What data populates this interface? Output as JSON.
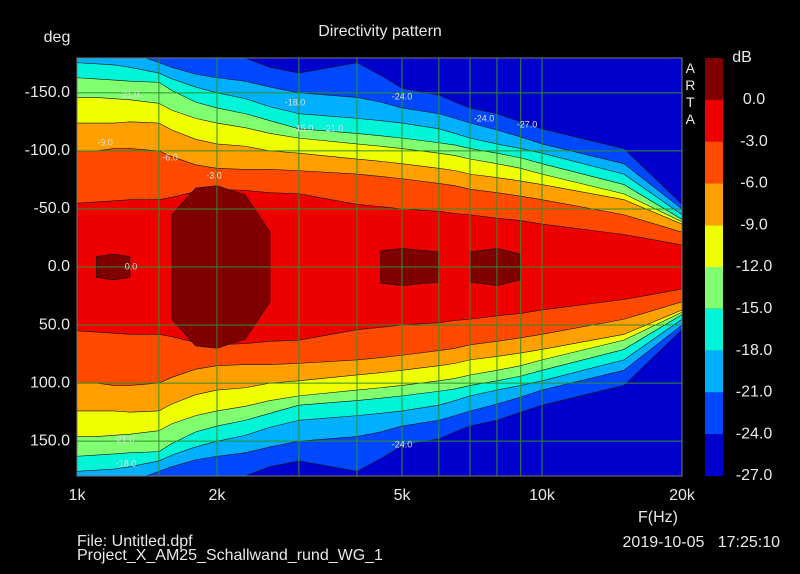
{
  "chart_data": {
    "type": "contour",
    "title": "Directivity pattern",
    "ylabel": "deg",
    "xlabel": "F(Hz)",
    "brand": "ARTA",
    "colorbar_unit": "dB",
    "footer_file": "File: Untitled.dpf",
    "footer_project": "Project_X_AM25_Schallwand_rund_WG_1",
    "footer_date": "2019-10-05   17:25:10",
    "log_x": true,
    "grid": true,
    "xlim": [
      1000,
      20000
    ],
    "xticks": [
      {
        "value": 1000,
        "label": "1k"
      },
      {
        "value": 2000,
        "label": "2k"
      },
      {
        "value": 5000,
        "label": "5k"
      },
      {
        "value": 10000,
        "label": "10k"
      },
      {
        "value": 20000,
        "label": "20k"
      }
    ],
    "xgrid": [
      1500,
      3000,
      4000,
      6000,
      7000,
      8000,
      9000
    ],
    "ylim": [
      -180,
      180
    ],
    "yticks": [
      {
        "value": -150,
        "label": "-150.0"
      },
      {
        "value": -100,
        "label": "-100.0"
      },
      {
        "value": -50,
        "label": "-50.0"
      },
      {
        "value": 0,
        "label": "0.0"
      },
      {
        "value": 50,
        "label": "50.0"
      },
      {
        "value": 100,
        "label": "100.0"
      },
      {
        "value": 150,
        "label": "150.0"
      }
    ],
    "colorbar": {
      "levels": [
        {
          "value": 0,
          "label": "0.0"
        },
        {
          "value": -3,
          "label": "-3.0"
        },
        {
          "value": -6,
          "label": "-6.0"
        },
        {
          "value": -9,
          "label": "-9.0"
        },
        {
          "value": -12,
          "label": "-12.0"
        },
        {
          "value": -15,
          "label": "-15.0"
        },
        {
          "value": -18,
          "label": "-18.0"
        },
        {
          "value": -21,
          "label": "-21.0"
        },
        {
          "value": -24,
          "label": "-24.0"
        },
        {
          "value": -27,
          "label": "-27.0"
        }
      ],
      "colors": [
        "#800000",
        "#ee0000",
        "#ff4a00",
        "#ffa000",
        "#f0ff00",
        "#80ff70",
        "#00f5d8",
        "#00b0ff",
        "#0048ff",
        "#0000cc"
      ]
    },
    "frequencies": [
      1000,
      1100,
      1200,
      1300,
      1500,
      1600,
      1800,
      2000,
      2300,
      2600,
      3000,
      4000,
      4500,
      5000,
      6000,
      6500,
      7000,
      8000,
      9000,
      10000,
      15000,
      20000
    ],
    "contours": [
      {
        "level": 0,
        "half_angle": [
          null,
          9,
          11,
          9,
          null,
          45,
          68,
          70,
          62,
          30,
          null,
          null,
          14,
          16,
          13,
          null,
          13,
          16,
          11,
          null,
          null,
          null
        ]
      },
      {
        "level": -3,
        "half_angle": [
          55,
          56,
          57,
          58,
          58,
          60,
          65,
          67,
          66,
          64,
          63,
          54,
          52,
          50,
          48,
          46,
          45,
          42,
          40,
          37,
          28,
          19
        ]
      },
      {
        "level": -6,
        "half_angle": [
          100,
          100,
          102,
          102,
          100,
          95,
          88,
          85,
          84,
          84,
          83,
          80,
          78,
          76,
          72,
          70,
          67,
          64,
          61,
          58,
          45,
          30
        ]
      },
      {
        "level": -9,
        "half_angle": [
          124,
          124,
          124,
          125,
          124,
          118,
          110,
          106,
          104,
          100,
          98,
          93,
          91,
          89,
          85,
          83,
          80,
          77,
          74,
          71,
          58,
          37
        ]
      },
      {
        "level": -12,
        "half_angle": [
          146,
          146,
          145,
          144,
          141,
          135,
          128,
          124,
          120,
          115,
          111,
          106,
          104,
          102,
          98,
          96,
          93,
          89,
          85,
          80,
          63,
          39
        ]
      },
      {
        "level": -15,
        "half_angle": [
          163,
          162,
          161,
          160,
          159,
          152,
          142,
          137,
          132,
          126,
          119,
          115,
          113,
          111,
          107,
          105,
          102,
          98,
          94,
          89,
          71,
          41
        ]
      },
      {
        "level": -18,
        "half_angle": [
          176,
          175,
          174,
          172,
          167,
          162,
          155,
          150,
          145,
          138,
          132,
          128,
          126,
          124,
          119,
          115,
          111,
          106,
          102,
          98,
          80,
          45
        ]
      },
      {
        "level": -21,
        "half_angle": [
          190,
          190,
          188,
          185,
          176,
          172,
          166,
          163,
          160,
          155,
          150,
          146,
          142,
          137,
          132,
          128,
          124,
          118,
          112,
          106,
          89,
          50
        ]
      },
      {
        "level": -24,
        "half_angle": [
          200,
          200,
          200,
          200,
          190,
          188,
          186,
          185,
          180,
          172,
          167,
          176,
          165,
          154,
          148,
          142,
          137,
          132,
          125,
          119,
          102,
          54
        ]
      }
    ],
    "contour_labels": [
      "-21.0",
      "-9.0",
      "-6.0",
      "-3.0",
      "-18.0",
      "-15.0",
      "-21.0",
      "-24.0",
      "-24.0",
      "-27.0",
      "0.0",
      "-24.0",
      "-21.0",
      "-18.0"
    ]
  }
}
